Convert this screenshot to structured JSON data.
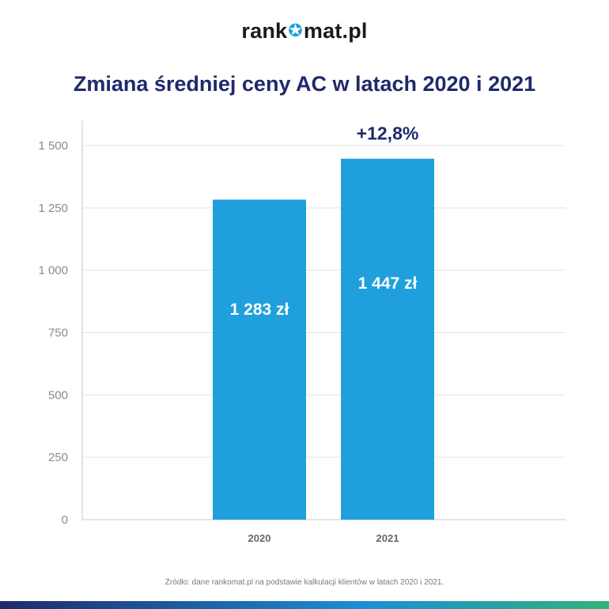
{
  "logo": {
    "left": "rank",
    "right": "mat.pl",
    "mark_icon": "star-o-icon"
  },
  "title": "Zmiana średniej ceny AC w latach 2020 i 2021",
  "source": "Źródło: dane rankomat.pl na podstawie kalkulacji klientów w latach 2020 i 2021.",
  "colors": {
    "bar": "#1fa0dc",
    "title": "#1f2a6b",
    "axis_text": "#8a8a8a",
    "grid": "#e3e3e3"
  },
  "chart_data": {
    "type": "bar",
    "title": "Zmiana średniej ceny AC w latach 2020 i 2021",
    "categories": [
      "2020",
      "2021"
    ],
    "values": [
      1283,
      1447
    ],
    "data_labels": [
      "1 283 zł",
      "1 447 zł"
    ],
    "annotation": "+12,8%",
    "yticks": [
      0,
      250,
      500,
      750,
      1000,
      1250,
      1500
    ],
    "ytick_labels": [
      "0",
      "250",
      "500",
      "750",
      "1 000",
      "1 250",
      "1 500"
    ],
    "ylim": [
      0,
      1600
    ],
    "grid": true,
    "xlabel": "",
    "ylabel": ""
  }
}
